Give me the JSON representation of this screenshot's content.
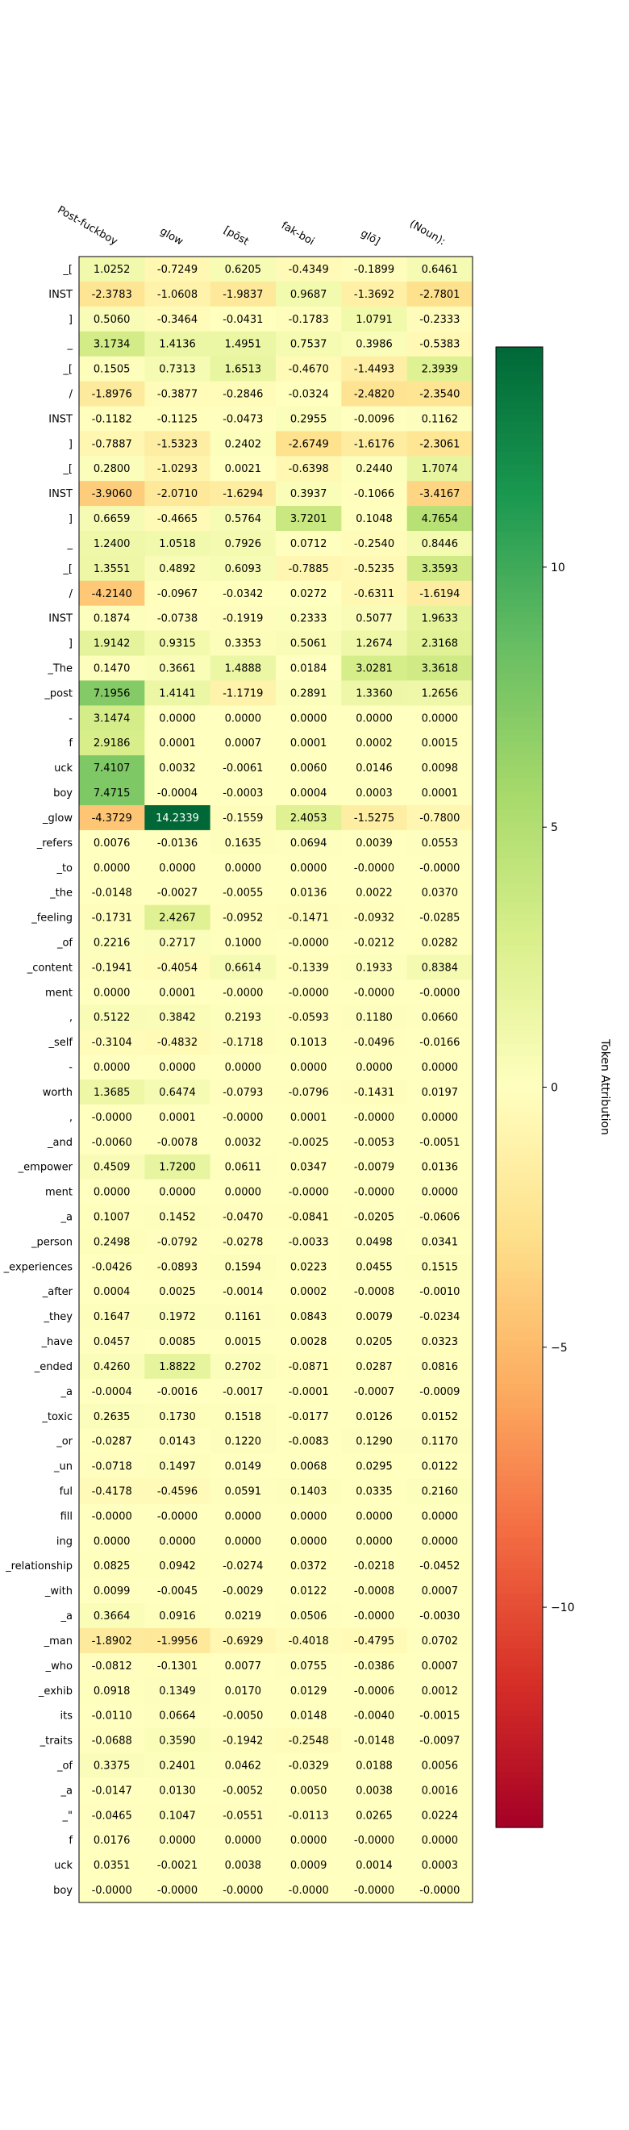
{
  "chart_data": {
    "type": "heatmap",
    "columns": [
      "Post-fuckboy",
      "glow",
      "[pōst",
      "fak-boi",
      "glō]",
      "(Noun):"
    ],
    "rows": [
      "_[",
      "INST",
      "]",
      "_",
      "_[",
      "/",
      "INST",
      "]",
      "_[",
      "INST",
      "]",
      "_",
      "_[",
      "/",
      "INST",
      "]",
      "_The",
      "_post",
      "-",
      "f",
      "uck",
      "boy",
      "_glow",
      "_refers",
      "_to",
      "_the",
      "_feeling",
      "_of",
      "_content",
      "ment",
      ",",
      "_self",
      "-",
      "worth",
      ",",
      "_and",
      "_empower",
      "ment",
      "_a",
      "_person",
      "_experiences",
      "_after",
      "_they",
      "_have",
      "_ended",
      "_a",
      "_toxic",
      "_or",
      "_un",
      "ful",
      "fill",
      "ing",
      "_relationship",
      "_with",
      "_a",
      "_man",
      "_who",
      "_exhib",
      "its",
      "_traits",
      "_of",
      "_a",
      "_\"",
      "f",
      "uck",
      "boy"
    ],
    "values": [
      [
        "1.0252",
        "-0.7249",
        "0.6205",
        "-0.4349",
        "-0.1899",
        "0.6461"
      ],
      [
        "-2.3783",
        "-1.0608",
        "-1.9837",
        "0.9687",
        "-1.3692",
        "-2.7801"
      ],
      [
        "0.5060",
        "-0.3464",
        "-0.0431",
        "-0.1783",
        "1.0791",
        "-0.2333"
      ],
      [
        "3.1734",
        "1.4136",
        "1.4951",
        "0.7537",
        "0.3986",
        "-0.5383"
      ],
      [
        "0.1505",
        "0.7313",
        "1.6513",
        "-0.4670",
        "-1.4493",
        "2.3939"
      ],
      [
        "-1.8976",
        "-0.3877",
        "-0.2846",
        "-0.0324",
        "-2.4820",
        "-2.3540"
      ],
      [
        "-0.1182",
        "-0.1125",
        "-0.0473",
        "0.2955",
        "-0.0096",
        "0.1162"
      ],
      [
        "-0.7887",
        "-1.5323",
        "0.2402",
        "-2.6749",
        "-1.6176",
        "-2.3061"
      ],
      [
        "0.2800",
        "-1.0293",
        "0.0021",
        "-0.6398",
        "0.2440",
        "1.7074"
      ],
      [
        "-3.9060",
        "-2.0710",
        "-1.6294",
        "0.3937",
        "-0.1066",
        "-3.4167"
      ],
      [
        "0.6659",
        "-0.4665",
        "0.5764",
        "3.7201",
        "0.1048",
        "4.7654"
      ],
      [
        "1.2400",
        "1.0518",
        "0.7926",
        "0.0712",
        "-0.2540",
        "0.8446"
      ],
      [
        "1.3551",
        "0.4892",
        "0.6093",
        "-0.7885",
        "-0.5235",
        "3.3593"
      ],
      [
        "-4.2140",
        "-0.0967",
        "-0.0342",
        "0.0272",
        "-0.6311",
        "-1.6194"
      ],
      [
        "0.1874",
        "-0.0738",
        "-0.1919",
        "0.2333",
        "0.5077",
        "1.9633"
      ],
      [
        "1.9142",
        "0.9315",
        "0.3353",
        "0.5061",
        "1.2674",
        "2.3168"
      ],
      [
        "0.1470",
        "0.3661",
        "1.4888",
        "0.0184",
        "3.0281",
        "3.3618"
      ],
      [
        "7.1956",
        "1.4141",
        "-1.1719",
        "0.2891",
        "1.3360",
        "1.2656"
      ],
      [
        "3.1474",
        "0.0000",
        "0.0000",
        "0.0000",
        "0.0000",
        "0.0000"
      ],
      [
        "2.9186",
        "0.0001",
        "0.0007",
        "0.0001",
        "0.0002",
        "0.0015"
      ],
      [
        "7.4107",
        "0.0032",
        "-0.0061",
        "0.0060",
        "0.0146",
        "0.0098"
      ],
      [
        "7.4715",
        "-0.0004",
        "-0.0003",
        "0.0004",
        "0.0003",
        "0.0001"
      ],
      [
        "-4.3729",
        "14.2339",
        "-0.1559",
        "2.4053",
        "-1.5275",
        "-0.7800"
      ],
      [
        "0.0076",
        "-0.0136",
        "0.1635",
        "0.0694",
        "0.0039",
        "0.0553"
      ],
      [
        "0.0000",
        "0.0000",
        "0.0000",
        "0.0000",
        "-0.0000",
        "-0.0000"
      ],
      [
        "-0.0148",
        "-0.0027",
        "-0.0055",
        "0.0136",
        "0.0022",
        "0.0370"
      ],
      [
        "-0.1731",
        "2.4267",
        "-0.0952",
        "-0.1471",
        "-0.0932",
        "-0.0285"
      ],
      [
        "0.2216",
        "0.2717",
        "0.1000",
        "-0.0000",
        "-0.0212",
        "0.0282"
      ],
      [
        "-0.1941",
        "-0.4054",
        "0.6614",
        "-0.1339",
        "0.1933",
        "0.8384"
      ],
      [
        "0.0000",
        "0.0001",
        "-0.0000",
        "-0.0000",
        "-0.0000",
        "-0.0000"
      ],
      [
        "0.5122",
        "0.3842",
        "0.2193",
        "-0.0593",
        "0.1180",
        "0.0660"
      ],
      [
        "-0.3104",
        "-0.4832",
        "-0.1718",
        "0.1013",
        "-0.0496",
        "-0.0166"
      ],
      [
        "0.0000",
        "0.0000",
        "0.0000",
        "0.0000",
        "0.0000",
        "0.0000"
      ],
      [
        "1.3685",
        "0.6474",
        "-0.0793",
        "-0.0796",
        "-0.1431",
        "0.0197"
      ],
      [
        "-0.0000",
        "0.0001",
        "-0.0000",
        "0.0001",
        "-0.0000",
        "0.0000"
      ],
      [
        "-0.0060",
        "-0.0078",
        "0.0032",
        "-0.0025",
        "-0.0053",
        "-0.0051"
      ],
      [
        "0.4509",
        "1.7200",
        "0.0611",
        "0.0347",
        "-0.0079",
        "0.0136"
      ],
      [
        "0.0000",
        "0.0000",
        "0.0000",
        "-0.0000",
        "-0.0000",
        "0.0000"
      ],
      [
        "0.1007",
        "0.1452",
        "-0.0470",
        "-0.0841",
        "-0.0205",
        "-0.0606"
      ],
      [
        "0.2498",
        "-0.0792",
        "-0.0278",
        "-0.0033",
        "0.0498",
        "0.0341"
      ],
      [
        "-0.0426",
        "-0.0893",
        "0.1594",
        "0.0223",
        "0.0455",
        "0.1515"
      ],
      [
        "0.0004",
        "0.0025",
        "-0.0014",
        "0.0002",
        "-0.0008",
        "-0.0010"
      ],
      [
        "0.1647",
        "0.1972",
        "0.1161",
        "0.0843",
        "0.0079",
        "-0.0234"
      ],
      [
        "0.0457",
        "0.0085",
        "0.0015",
        "0.0028",
        "0.0205",
        "0.0323"
      ],
      [
        "0.4260",
        "1.8822",
        "0.2702",
        "-0.0871",
        "0.0287",
        "0.0816"
      ],
      [
        "-0.0004",
        "-0.0016",
        "-0.0017",
        "-0.0001",
        "-0.0007",
        "-0.0009"
      ],
      [
        "0.2635",
        "0.1730",
        "0.1518",
        "-0.0177",
        "0.0126",
        "0.0152"
      ],
      [
        "-0.0287",
        "0.0143",
        "0.1220",
        "-0.0083",
        "0.1290",
        "0.1170"
      ],
      [
        "-0.0718",
        "0.1497",
        "0.0149",
        "0.0068",
        "0.0295",
        "0.0122"
      ],
      [
        "-0.4178",
        "-0.4596",
        "0.0591",
        "0.1403",
        "0.0335",
        "0.2160"
      ],
      [
        "-0.0000",
        "-0.0000",
        "0.0000",
        "0.0000",
        "0.0000",
        "0.0000"
      ],
      [
        "0.0000",
        "0.0000",
        "0.0000",
        "0.0000",
        "0.0000",
        "0.0000"
      ],
      [
        "0.0825",
        "0.0942",
        "-0.0274",
        "0.0372",
        "-0.0218",
        "-0.0452"
      ],
      [
        "0.0099",
        "-0.0045",
        "-0.0029",
        "0.0122",
        "-0.0008",
        "0.0007"
      ],
      [
        "0.3664",
        "0.0916",
        "0.0219",
        "0.0506",
        "-0.0000",
        "-0.0030"
      ],
      [
        "-1.8902",
        "-1.9956",
        "-0.6929",
        "-0.4018",
        "-0.4795",
        "0.0702"
      ],
      [
        "-0.0812",
        "-0.1301",
        "0.0077",
        "0.0755",
        "-0.0386",
        "0.0007"
      ],
      [
        "0.0918",
        "0.1349",
        "0.0170",
        "0.0129",
        "-0.0006",
        "0.0012"
      ],
      [
        "-0.0110",
        "0.0664",
        "-0.0050",
        "0.0148",
        "-0.0040",
        "-0.0015"
      ],
      [
        "-0.0688",
        "0.3590",
        "-0.1942",
        "-0.2548",
        "-0.0148",
        "-0.0097"
      ],
      [
        "0.3375",
        "0.2401",
        "0.0462",
        "-0.0329",
        "0.0188",
        "0.0056"
      ],
      [
        "-0.0147",
        "0.0130",
        "-0.0052",
        "0.0050",
        "0.0038",
        "0.0016"
      ],
      [
        "-0.0465",
        "0.1047",
        "-0.0551",
        "-0.0113",
        "0.0265",
        "0.0224"
      ],
      [
        "0.0176",
        "0.0000",
        "0.0000",
        "0.0000",
        "-0.0000",
        "0.0000"
      ],
      [
        "0.0351",
        "-0.0021",
        "0.0038",
        "0.0009",
        "0.0014",
        "0.0003"
      ],
      [
        "-0.0000",
        "-0.0000",
        "-0.0000",
        "-0.0000",
        "-0.0000",
        "-0.0000"
      ]
    ],
    "colormap": "RdYlGn",
    "color_range": [
      -14.2339,
      14.2339
    ],
    "colorbar": {
      "label": "Token Attribution",
      "ticks": [
        10,
        5,
        0,
        -5,
        -10
      ],
      "tick_labels": [
        "10",
        "5",
        "0",
        "−5",
        "−10"
      ]
    }
  }
}
